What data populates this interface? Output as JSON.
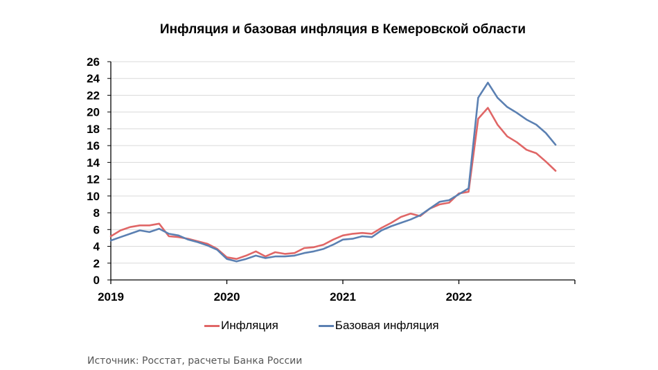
{
  "chart_data": {
    "type": "line",
    "title": "Инфляция и базовая инфляция в Кемеровской области",
    "xlabel": "",
    "ylabel": "",
    "ylim": [
      0,
      26
    ],
    "yticks": [
      "0",
      "2",
      "4",
      "6",
      "8",
      "10",
      "12",
      "14",
      "16",
      "18",
      "20",
      "22",
      "24",
      "26"
    ],
    "x_tick_labels": [
      "2019",
      "2020",
      "2021",
      "2022"
    ],
    "x": [
      "2019-01",
      "2019-02",
      "2019-03",
      "2019-04",
      "2019-05",
      "2019-06",
      "2019-07",
      "2019-08",
      "2019-09",
      "2019-10",
      "2019-11",
      "2019-12",
      "2020-01",
      "2020-02",
      "2020-03",
      "2020-04",
      "2020-05",
      "2020-06",
      "2020-07",
      "2020-08",
      "2020-09",
      "2020-10",
      "2020-11",
      "2020-12",
      "2021-01",
      "2021-02",
      "2021-03",
      "2021-04",
      "2021-05",
      "2021-06",
      "2021-07",
      "2021-08",
      "2021-09",
      "2021-10",
      "2021-11",
      "2021-12",
      "2022-01",
      "2022-02",
      "2022-03",
      "2022-04",
      "2022-05",
      "2022-06",
      "2022-07",
      "2022-08",
      "2022-09",
      "2022-10",
      "2022-11"
    ],
    "grid": true,
    "legend_position": "bottom",
    "series": [
      {
        "name": "Инфляция",
        "color": "#e06666",
        "values": [
          5.2,
          5.9,
          6.3,
          6.5,
          6.5,
          6.7,
          5.2,
          5.1,
          4.9,
          4.6,
          4.3,
          3.7,
          2.7,
          2.5,
          2.9,
          3.4,
          2.8,
          3.3,
          3.1,
          3.2,
          3.8,
          3.9,
          4.2,
          4.8,
          5.3,
          5.5,
          5.6,
          5.5,
          6.2,
          6.8,
          7.5,
          7.9,
          7.6,
          8.5,
          9.0,
          9.2,
          10.3,
          10.5,
          19.2,
          20.5,
          18.5,
          17.1,
          16.4,
          15.5,
          15.1,
          14.1,
          13.0
        ]
      },
      {
        "name": "Базовая инфляция",
        "color": "#5b80b2",
        "values": [
          4.7,
          5.1,
          5.5,
          5.9,
          5.7,
          6.1,
          5.5,
          5.3,
          4.8,
          4.5,
          4.1,
          3.6,
          2.5,
          2.2,
          2.5,
          2.9,
          2.6,
          2.8,
          2.8,
          2.9,
          3.2,
          3.4,
          3.7,
          4.2,
          4.8,
          4.9,
          5.2,
          5.1,
          5.9,
          6.4,
          6.8,
          7.2,
          7.7,
          8.5,
          9.3,
          9.5,
          10.2,
          10.9,
          21.7,
          23.5,
          21.7,
          20.6,
          19.9,
          19.1,
          18.5,
          17.5,
          16.1
        ]
      }
    ]
  },
  "source_text": "Источник: Росстат, расчеты Банка России"
}
